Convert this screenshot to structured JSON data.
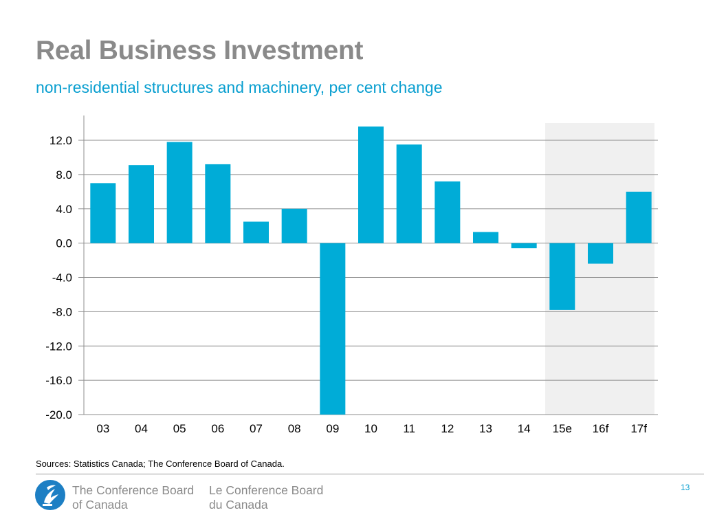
{
  "slide": {
    "title": "Real Business Investment",
    "subtitle": "non-residential structures and machinery, per cent change",
    "source": "Sources: Statistics Canada; The Conference Board of Canada.",
    "page_number": "13"
  },
  "footer": {
    "org_en_line1": "The Conference Board",
    "org_en_line2": "of Canada",
    "org_fr_line1": "Le Conference Board",
    "org_fr_line2": "du Canada"
  },
  "chart_data": {
    "type": "bar",
    "title": "Real Business Investment",
    "xlabel": "",
    "ylabel": "",
    "categories": [
      "03",
      "04",
      "05",
      "06",
      "07",
      "08",
      "09",
      "10",
      "11",
      "12",
      "13",
      "14",
      "15e",
      "16f",
      "17f"
    ],
    "values": [
      7.0,
      9.1,
      11.8,
      9.2,
      2.5,
      4.0,
      -20.0,
      13.6,
      11.5,
      7.2,
      1.3,
      -0.6,
      -7.8,
      -2.4,
      6.0
    ],
    "ylim": [
      -20.0,
      14.0
    ],
    "yticks": [
      12.0,
      8.0,
      4.0,
      0.0,
      -4.0,
      -8.0,
      -12.0,
      -16.0,
      -20.0
    ],
    "ytick_labels": [
      "12.0",
      "8.0",
      "4.0",
      "0.0",
      "-4.0",
      "-8.0",
      "-12.0",
      "-16.0",
      "-20.0"
    ],
    "forecast_categories": [
      "15e",
      "16f",
      "17f"
    ],
    "grid": true,
    "colors": {
      "bar": "#00acd7",
      "forecast_shade": "#f0f0f0",
      "grid": "#8c8c8c"
    }
  }
}
